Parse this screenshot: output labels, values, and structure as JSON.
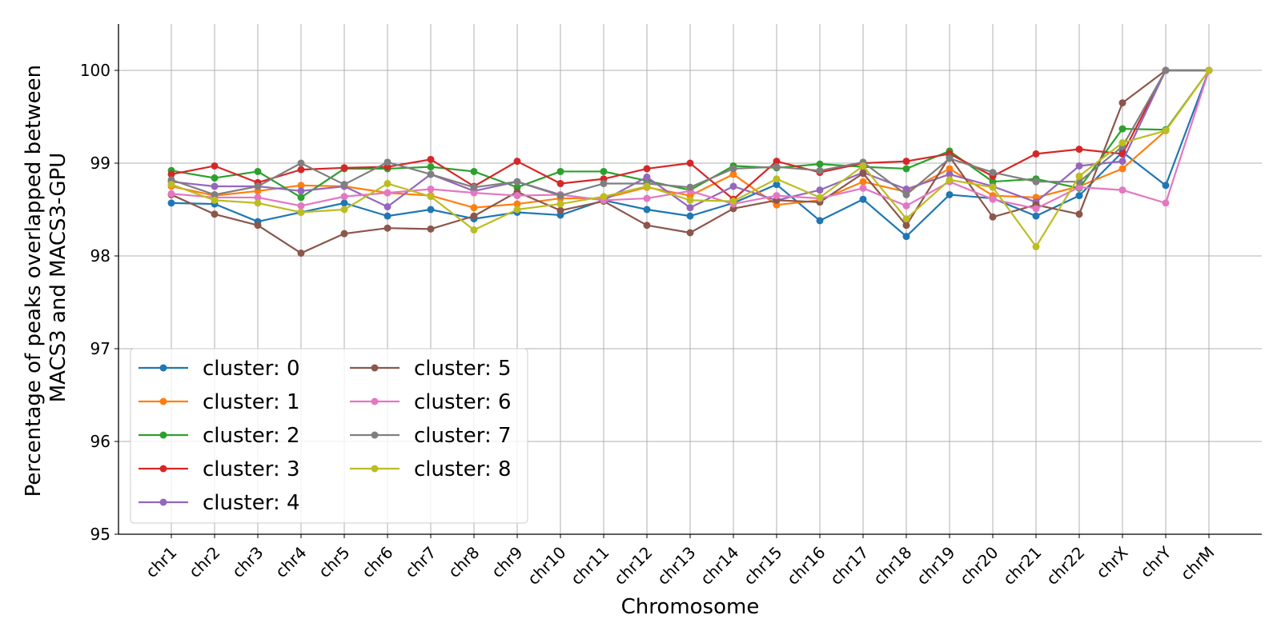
{
  "chart_data": {
    "type": "line",
    "title": "",
    "xlabel": "Chromosome",
    "ylabel_lines": [
      "Percentage of peaks overlapped between",
      "MACS3 and MACS3-GPU"
    ],
    "ylim": [
      95,
      100.5
    ],
    "yticks": [
      95,
      96,
      97,
      98,
      99,
      100
    ],
    "grid": true,
    "legend": {
      "location": "lower-left",
      "columns": 2
    },
    "categories": [
      "chr1",
      "chr2",
      "chr3",
      "chr4",
      "chr5",
      "chr6",
      "chr7",
      "chr8",
      "chr9",
      "chr10",
      "chr11",
      "chr12",
      "chr13",
      "chr14",
      "chr15",
      "chr16",
      "chr17",
      "chr18",
      "chr19",
      "chr20",
      "chr21",
      "chr22",
      "chrX",
      "chrY",
      "chrM"
    ],
    "series": [
      {
        "name": "cluster: 0",
        "color": "#1f77b4",
        "values": [
          98.57,
          98.56,
          98.37,
          98.47,
          98.57,
          98.43,
          98.5,
          98.4,
          98.47,
          98.44,
          98.6,
          98.5,
          98.43,
          98.57,
          98.77,
          98.38,
          98.61,
          98.21,
          98.66,
          98.62,
          98.43,
          98.65,
          99.12,
          98.76,
          100.0
        ]
      },
      {
        "name": "cluster: 1",
        "color": "#ff7f0e",
        "values": [
          98.75,
          98.65,
          98.7,
          98.76,
          98.75,
          98.68,
          98.65,
          98.52,
          98.56,
          98.62,
          98.62,
          98.74,
          98.65,
          98.88,
          98.55,
          98.6,
          98.8,
          98.69,
          98.94,
          98.65,
          98.63,
          98.75,
          98.94,
          99.35,
          100.0
        ]
      },
      {
        "name": "cluster: 2",
        "color": "#2ca02c",
        "values": [
          98.92,
          98.84,
          98.91,
          98.63,
          98.94,
          98.94,
          98.96,
          98.91,
          98.74,
          98.91,
          98.91,
          98.81,
          98.71,
          98.97,
          98.95,
          98.99,
          98.96,
          98.94,
          99.13,
          98.8,
          98.83,
          98.73,
          99.37,
          99.36,
          100.0
        ]
      },
      {
        "name": "cluster: 3",
        "color": "#d62728",
        "values": [
          98.88,
          98.97,
          98.79,
          98.93,
          98.95,
          98.96,
          99.04,
          98.75,
          99.02,
          98.78,
          98.83,
          98.94,
          99.0,
          98.61,
          99.02,
          98.9,
          99.0,
          99.02,
          99.1,
          98.86,
          99.1,
          99.15,
          99.1,
          100.0,
          100.0
        ]
      },
      {
        "name": "cluster: 4",
        "color": "#9467bd",
        "values": [
          98.8,
          98.75,
          98.75,
          98.7,
          98.75,
          98.53,
          98.88,
          98.7,
          98.8,
          98.66,
          98.6,
          98.85,
          98.52,
          98.75,
          98.6,
          98.71,
          98.9,
          98.72,
          98.88,
          98.75,
          98.58,
          98.97,
          99.02,
          100.0,
          100.0
        ]
      },
      {
        "name": "cluster: 5",
        "color": "#8c564b",
        "values": [
          98.66,
          98.45,
          98.33,
          98.03,
          98.24,
          98.3,
          98.29,
          98.43,
          98.69,
          98.49,
          98.59,
          98.33,
          98.25,
          98.51,
          98.6,
          98.58,
          98.89,
          98.33,
          99.07,
          98.42,
          98.55,
          98.45,
          99.65,
          100.0,
          100.0
        ]
      },
      {
        "name": "cluster: 6",
        "color": "#e377c2",
        "values": [
          98.67,
          98.63,
          98.63,
          98.54,
          98.64,
          98.68,
          98.72,
          98.68,
          98.65,
          98.66,
          98.6,
          98.62,
          98.7,
          98.56,
          98.65,
          98.62,
          98.73,
          98.54,
          98.8,
          98.61,
          98.51,
          98.74,
          98.71,
          98.57,
          100.0
        ]
      },
      {
        "name": "cluster: 7",
        "color": "#7f7f7f",
        "values": [
          98.82,
          98.66,
          98.75,
          99.0,
          98.77,
          99.01,
          98.88,
          98.74,
          98.8,
          98.65,
          98.78,
          98.78,
          98.74,
          98.94,
          98.96,
          98.92,
          99.01,
          98.66,
          99.05,
          98.9,
          98.8,
          98.8,
          99.18,
          100.0,
          100.0
        ]
      },
      {
        "name": "cluster: 8",
        "color": "#bcbd22",
        "values": [
          98.77,
          98.6,
          98.57,
          98.47,
          98.5,
          98.78,
          98.64,
          98.28,
          98.5,
          98.56,
          98.64,
          98.75,
          98.6,
          98.59,
          98.83,
          98.63,
          98.97,
          98.4,
          98.82,
          98.74,
          98.1,
          98.86,
          99.22,
          99.35,
          100.0
        ]
      }
    ]
  }
}
